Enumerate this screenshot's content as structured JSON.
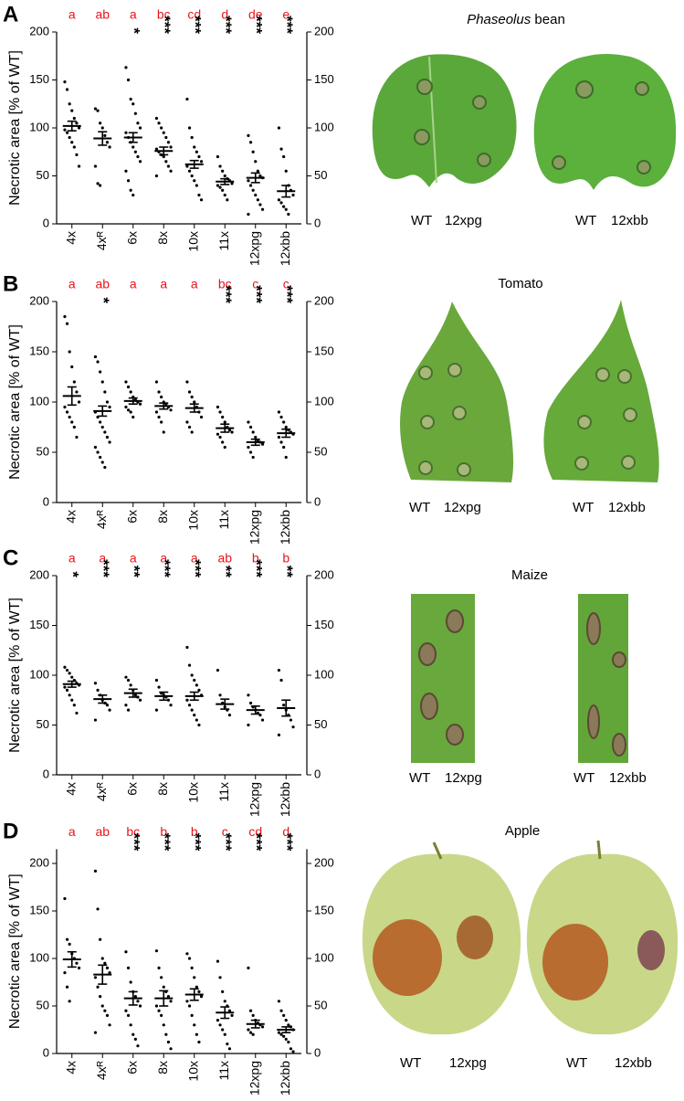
{
  "chart_data": [
    {
      "type": "strip",
      "panel": "A",
      "ylabel": "Necrotic area [% of WT]",
      "color": "#000000",
      "letter_color": "#e8141c",
      "categories": [
        "4x",
        "4xᴿ",
        "6x",
        "8x",
        "10x",
        "11x",
        "12xpg",
        "12xbb"
      ],
      "letters": [
        "a",
        "ab",
        "a",
        "bc",
        "cd",
        "d",
        "de",
        "e"
      ],
      "stars": [
        null,
        null,
        "*",
        "***",
        "***",
        "***",
        "***",
        "***"
      ],
      "means": [
        102,
        89,
        90,
        76,
        62,
        44,
        48,
        34
      ],
      "sem": [
        5,
        7,
        5,
        4,
        4,
        3,
        5,
        6
      ],
      "points": [
        [
          148,
          140,
          125,
          118,
          110,
          105,
          100,
          98,
          95,
          90,
          85,
          80,
          72,
          60
        ],
        [
          120,
          118,
          105,
          100,
          92,
          85,
          80,
          60,
          42,
          40
        ],
        [
          163,
          150,
          130,
          125,
          115,
          105,
          100,
          95,
          90,
          85,
          80,
          75,
          70,
          65,
          55,
          45,
          35,
          30
        ],
        [
          110,
          105,
          100,
          95,
          90,
          85,
          80,
          78,
          75,
          72,
          70,
          65,
          60,
          55,
          50
        ],
        [
          130,
          100,
          90,
          80,
          75,
          70,
          65,
          60,
          55,
          50,
          45,
          40,
          30,
          25
        ],
        [
          70,
          60,
          55,
          50,
          47,
          45,
          42,
          40,
          38,
          35,
          30,
          25
        ],
        [
          92,
          85,
          75,
          65,
          55,
          50,
          48,
          45,
          40,
          35,
          30,
          25,
          20,
          15,
          10
        ],
        [
          100,
          78,
          70,
          55,
          40,
          35,
          30,
          25,
          22,
          18,
          15,
          10
        ]
      ],
      "ylim": [
        0,
        200
      ],
      "yticks": [
        0,
        50,
        100,
        150,
        200
      ],
      "y2lim": [
        0,
        200
      ],
      "y2ticks": [
        0,
        50,
        100,
        150,
        200
      ]
    },
    {
      "type": "strip",
      "panel": "B",
      "ylabel": "Necrotic area [% of WT]",
      "color": "#000000",
      "letter_color": "#e8141c",
      "categories": [
        "4x",
        "4xᴿ",
        "6x",
        "8x",
        "10x",
        "11x",
        "12xpg",
        "12xbb"
      ],
      "letters": [
        "a",
        "ab",
        "a",
        "a",
        "a",
        "bc",
        "c",
        "c"
      ],
      "stars": [
        null,
        "*",
        null,
        null,
        null,
        "***",
        "***",
        "***"
      ],
      "means": [
        106,
        91,
        101,
        96,
        94,
        74,
        60,
        69
      ],
      "sem": [
        9,
        5,
        3,
        3,
        4,
        4,
        3,
        4
      ],
      "points": [
        [
          185,
          178,
          150,
          135,
          120,
          110,
          100,
          95,
          90,
          85,
          80,
          75,
          65
        ],
        [
          145,
          140,
          130,
          120,
          110,
          100,
          95,
          90,
          85,
          80,
          75,
          70,
          65,
          60,
          55,
          50,
          45,
          40,
          35
        ],
        [
          120,
          115,
          110,
          105,
          102,
          100,
          98,
          95,
          92,
          90,
          85
        ],
        [
          120,
          110,
          105,
          100,
          98,
          95,
          92,
          90,
          85,
          80,
          70
        ],
        [
          120,
          110,
          105,
          100,
          95,
          90,
          85,
          80,
          75,
          70
        ],
        [
          95,
          90,
          85,
          80,
          75,
          72,
          70,
          68,
          65,
          60,
          55
        ],
        [
          80,
          75,
          70,
          65,
          62,
          60,
          58,
          55,
          50,
          45
        ],
        [
          90,
          85,
          80,
          75,
          72,
          70,
          68,
          65,
          60,
          55,
          45
        ]
      ],
      "ylim": [
        0,
        200
      ],
      "yticks": [
        0,
        50,
        100,
        150,
        200
      ],
      "y2lim": [
        0,
        200
      ],
      "y2ticks": [
        0,
        50,
        100,
        150,
        200
      ]
    },
    {
      "type": "strip",
      "panel": "C",
      "ylabel": "Necrotic area [% of WT]",
      "color": "#000000",
      "letter_color": "#e8141c",
      "categories": [
        "4x",
        "4xᴿ",
        "6x",
        "8x",
        "10x",
        "11x",
        "12xpg",
        "12xbb"
      ],
      "letters": [
        "a",
        "a",
        "a",
        "a",
        "a",
        "ab",
        "b",
        "b"
      ],
      "stars": [
        "*",
        "***",
        "**",
        "***",
        "***",
        "**",
        "***",
        "**"
      ],
      "means": [
        91,
        76,
        82,
        79,
        79,
        71,
        65,
        67
      ],
      "sem": [
        3,
        4,
        4,
        4,
        4,
        5,
        4,
        8
      ],
      "points": [
        [
          108,
          105,
          102,
          98,
          95,
          92,
          90,
          88,
          85,
          80,
          75,
          70,
          62
        ],
        [
          92,
          85,
          80,
          75,
          72,
          70,
          65,
          55
        ],
        [
          98,
          95,
          90,
          85,
          80,
          78,
          75,
          70,
          65
        ],
        [
          95,
          88,
          82,
          80,
          78,
          75,
          70,
          65
        ],
        [
          128,
          110,
          100,
          95,
          90,
          85,
          80,
          75,
          70,
          65,
          60,
          55,
          50
        ],
        [
          105,
          80,
          72,
          68,
          65,
          60
        ],
        [
          80,
          72,
          68,
          65,
          62,
          60,
          55,
          50
        ],
        [
          105,
          95,
          70,
          65,
          60,
          55,
          48,
          40
        ]
      ],
      "ylim": [
        0,
        200
      ],
      "yticks": [
        0,
        50,
        100,
        150,
        200
      ],
      "y2lim": [
        0,
        200
      ],
      "y2ticks": [
        0,
        50,
        100,
        150,
        200
      ]
    },
    {
      "type": "strip",
      "panel": "D",
      "ylabel": "Necrotic area [% of WT]",
      "color": "#000000",
      "letter_color": "#e8141c",
      "categories": [
        "4x",
        "4xᴿ",
        "6x",
        "8x",
        "10x",
        "11x",
        "12xpg",
        "12xbb"
      ],
      "letters": [
        "a",
        "ab",
        "bc",
        "b",
        "b",
        "c",
        "cd",
        "d"
      ],
      "stars": [
        null,
        null,
        "***",
        "***",
        "***",
        "***",
        "***",
        "***"
      ],
      "means": [
        99,
        83,
        58,
        58,
        62,
        43,
        31,
        25
      ],
      "sem": [
        8,
        10,
        7,
        8,
        6,
        6,
        4,
        3
      ],
      "points": [
        [
          163,
          120,
          115,
          105,
          100,
          95,
          90,
          85,
          70,
          55
        ],
        [
          192,
          152,
          120,
          100,
          95,
          90,
          85,
          80,
          70,
          60,
          50,
          45,
          40,
          30,
          22
        ],
        [
          107,
          90,
          75,
          65,
          60,
          55,
          50,
          45,
          40,
          30,
          20,
          15,
          8
        ],
        [
          108,
          90,
          80,
          70,
          65,
          60,
          55,
          50,
          45,
          40,
          30,
          20,
          12,
          5
        ],
        [
          105,
          100,
          90,
          80,
          70,
          65,
          60,
          55,
          50,
          40,
          30,
          20,
          12
        ],
        [
          97,
          80,
          65,
          55,
          50,
          45,
          40,
          35,
          30,
          25,
          20,
          10,
          5
        ],
        [
          90,
          45,
          40,
          35,
          32,
          30,
          28,
          25,
          22,
          20
        ],
        [
          55,
          45,
          40,
          35,
          30,
          28,
          25,
          22,
          20,
          18,
          15,
          12,
          5,
          2
        ]
      ],
      "ylim": [
        0,
        215
      ],
      "yticks": [
        0,
        50,
        100,
        150,
        200
      ],
      "y2lim": [
        0,
        215
      ],
      "y2ticks": [
        0,
        50,
        100,
        150,
        200
      ]
    }
  ],
  "photos": [
    {
      "title": [
        "Phaseolus",
        "bean"
      ],
      "labels": [
        [
          "WT",
          "12xpg"
        ],
        [
          "WT",
          "12xbb"
        ]
      ]
    },
    {
      "title": [
        "Tomato"
      ],
      "labels": [
        [
          "WT",
          "12xpg"
        ],
        [
          "WT",
          "12xbb"
        ]
      ]
    },
    {
      "title": [
        "Maize"
      ],
      "labels": [
        [
          "WT",
          "12xpg"
        ],
        [
          "WT",
          "12xbb"
        ]
      ]
    },
    {
      "title": [
        "Apple"
      ],
      "labels": [
        [
          "WT",
          "12xpg"
        ],
        [
          "WT",
          "12xbb"
        ]
      ]
    }
  ]
}
